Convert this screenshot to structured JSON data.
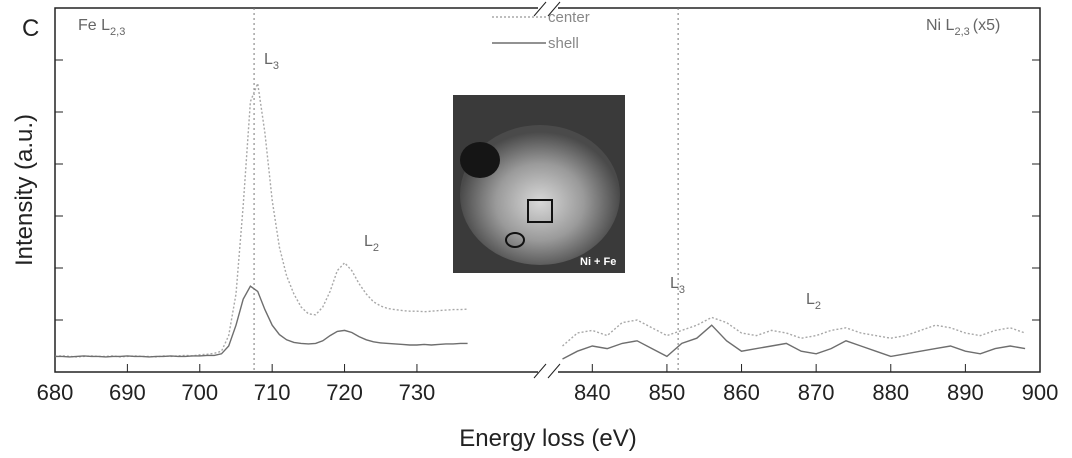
{
  "chart_data": [
    {
      "type": "line",
      "panel_label": "C",
      "ylabel": "Intensity (a.u.)",
      "xlabel": "Energy loss (eV)",
      "ylim": [
        0,
        7
      ],
      "yticks": [
        1,
        2,
        3,
        4,
        5,
        6
      ],
      "xlim": [
        680,
        747
      ],
      "xticks": [
        680,
        690,
        700,
        710,
        720,
        730
      ],
      "vlines": [
        707.5
      ],
      "x": [
        680,
        681,
        682,
        683,
        684,
        685,
        686,
        687,
        688,
        689,
        690,
        691,
        692,
        693,
        694,
        695,
        696,
        697,
        698,
        699,
        700,
        701,
        702,
        703,
        704,
        705,
        706,
        707,
        708,
        709,
        710,
        711,
        712,
        713,
        714,
        715,
        716,
        717,
        718,
        719,
        720,
        721,
        722,
        723,
        724,
        725,
        726,
        727,
        728,
        729,
        730,
        731,
        732,
        733,
        734,
        735,
        736,
        737
      ],
      "series": [
        {
          "name": "center",
          "color": "#a8a8a8",
          "values": [
            0.3,
            0.31,
            0.3,
            0.29,
            0.3,
            0.31,
            0.3,
            0.3,
            0.31,
            0.29,
            0.3,
            0.31,
            0.3,
            0.3,
            0.29,
            0.31,
            0.3,
            0.31,
            0.32,
            0.31,
            0.33,
            0.34,
            0.36,
            0.4,
            0.7,
            1.5,
            3.2,
            5.2,
            5.55,
            4.6,
            3.3,
            2.4,
            1.85,
            1.5,
            1.25,
            1.12,
            1.1,
            1.25,
            1.55,
            1.95,
            2.1,
            1.95,
            1.7,
            1.5,
            1.35,
            1.27,
            1.22,
            1.2,
            1.18,
            1.17,
            1.17,
            1.16,
            1.17,
            1.18,
            1.19,
            1.2,
            1.2,
            1.21
          ]
        },
        {
          "name": "shell",
          "color": "#6e6e6e",
          "values": [
            0.3,
            0.3,
            0.29,
            0.3,
            0.31,
            0.3,
            0.3,
            0.29,
            0.3,
            0.3,
            0.31,
            0.3,
            0.3,
            0.29,
            0.3,
            0.3,
            0.31,
            0.3,
            0.3,
            0.31,
            0.31,
            0.32,
            0.32,
            0.35,
            0.5,
            0.9,
            1.4,
            1.65,
            1.55,
            1.2,
            0.9,
            0.72,
            0.62,
            0.57,
            0.55,
            0.54,
            0.55,
            0.6,
            0.7,
            0.78,
            0.8,
            0.76,
            0.68,
            0.62,
            0.58,
            0.56,
            0.55,
            0.54,
            0.53,
            0.52,
            0.52,
            0.53,
            0.52,
            0.53,
            0.54,
            0.54,
            0.55,
            0.55
          ]
        }
      ]
    },
    {
      "type": "line",
      "xlim": [
        835,
        900
      ],
      "xticks": [
        840,
        850,
        860,
        870,
        880,
        890,
        900
      ],
      "vlines": [
        851.5
      ],
      "x": [
        836,
        838,
        840,
        842,
        844,
        846,
        848,
        850,
        852,
        854,
        856,
        858,
        860,
        862,
        864,
        866,
        868,
        870,
        872,
        874,
        876,
        878,
        880,
        882,
        884,
        886,
        888,
        890,
        892,
        894,
        896,
        898
      ],
      "series": [
        {
          "color": "#a8a8a8",
          "values": [
            0.5,
            0.75,
            0.8,
            0.7,
            0.95,
            1.0,
            0.85,
            0.7,
            0.8,
            0.9,
            1.05,
            0.95,
            0.75,
            0.7,
            0.8,
            0.75,
            0.65,
            0.7,
            0.8,
            0.85,
            0.75,
            0.7,
            0.65,
            0.7,
            0.8,
            0.9,
            0.85,
            0.75,
            0.7,
            0.8,
            0.85,
            0.75
          ]
        },
        {
          "color": "#6e6e6e",
          "values": [
            0.25,
            0.4,
            0.5,
            0.45,
            0.55,
            0.6,
            0.45,
            0.3,
            0.55,
            0.65,
            0.9,
            0.6,
            0.4,
            0.45,
            0.5,
            0.55,
            0.4,
            0.35,
            0.45,
            0.6,
            0.5,
            0.4,
            0.3,
            0.35,
            0.4,
            0.45,
            0.5,
            0.4,
            0.35,
            0.45,
            0.5,
            0.45
          ]
        }
      ]
    }
  ],
  "annotations": {
    "fe_edge": {
      "text": "Fe L",
      "sub": "2,3"
    },
    "ni_edge": {
      "text": "Ni L",
      "sub": "2,3",
      "suffix": "(x5)"
    },
    "fe_l3": {
      "text": "L",
      "sub": "3"
    },
    "fe_l2": {
      "text": "L",
      "sub": "2"
    },
    "ni_l3": {
      "text": "L",
      "sub": "3"
    },
    "ni_l2": {
      "text": "L",
      "sub": "2"
    },
    "inset_label": "Ni + Fe"
  }
}
